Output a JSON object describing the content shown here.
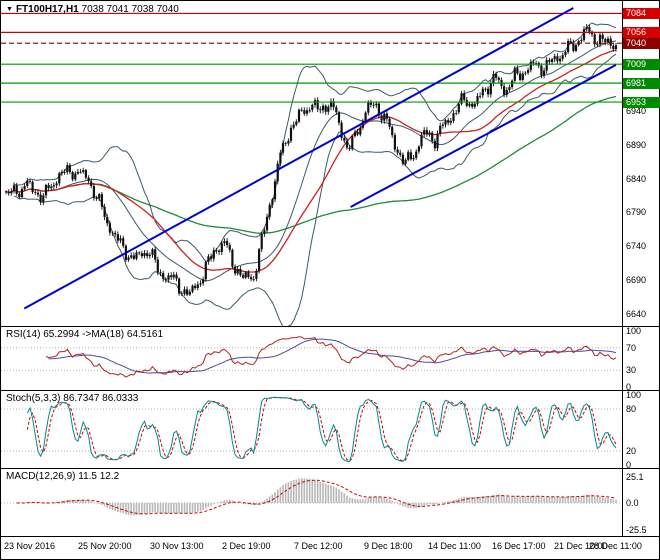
{
  "symbol_bar": {
    "marker": "▼",
    "symbol": "FT100H17,H1",
    "quote": "7038 7041 7038 7040"
  },
  "panels": {
    "rsi": {
      "header": "RSI(14) 65.2994 ->MA(18) 64.5161",
      "scale": [
        "100",
        "70",
        "30",
        "0"
      ],
      "level_lines": [
        70,
        30
      ]
    },
    "stoch": {
      "header": "Stoch(5,3,3) 86.7347 86.0333",
      "scale": [
        "100",
        "80",
        "20",
        "0"
      ],
      "level_lines": [
        80,
        20
      ]
    },
    "macd": {
      "header": "MACD(12,26,9) 11.5 12.2",
      "scale": [
        "25.1",
        "0.0",
        "-25.5"
      ],
      "level_lines": [
        0
      ]
    }
  },
  "price_axis": {
    "tags": [
      {
        "label": "7084",
        "price": 7084,
        "bg": "#d40000"
      },
      {
        "label": "7056",
        "price": 7056,
        "bg": "#d40000"
      },
      {
        "label": "7040",
        "price": 7040,
        "bg": "#8b0000"
      },
      {
        "label": "7009",
        "price": 7009,
        "bg": "#008a00"
      },
      {
        "label": "6981",
        "price": 6981,
        "bg": "#008a00"
      },
      {
        "label": "6953",
        "price": 6953,
        "bg": "#008a00"
      }
    ],
    "scale": [
      "6940",
      "6890",
      "6840",
      "6790",
      "6740",
      "6690",
      "6640"
    ]
  },
  "chart_data": {
    "type": "candlestick",
    "symbol": "FT100H17",
    "timeframe": "H1",
    "last_quote": {
      "open": 7038,
      "high": 7041,
      "low": 7038,
      "close": 7040
    },
    "price_range": [
      6628,
      7092
    ],
    "bars": 230,
    "x_labels": [
      "23 Nov 2016",
      "25 Nov 20:00",
      "30 Nov 13:00",
      "2 Dec 19:00",
      "7 Dec 12:00",
      "9 Dec 18:00",
      "14 Dec 11:00",
      "16 Dec 17:00",
      "21 Dec 10:00",
      "28 Dec 11:00"
    ],
    "price_path_anchors": [
      [
        0.0,
        6815
      ],
      [
        0.036,
        6830
      ],
      [
        0.061,
        6812
      ],
      [
        0.086,
        6845
      ],
      [
        0.11,
        6852
      ],
      [
        0.135,
        6840
      ],
      [
        0.152,
        6805
      ],
      [
        0.168,
        6772
      ],
      [
        0.184,
        6746
      ],
      [
        0.209,
        6720
      ],
      [
        0.234,
        6736
      ],
      [
        0.25,
        6702
      ],
      [
        0.275,
        6690
      ],
      [
        0.3,
        6666
      ],
      [
        0.324,
        6700
      ],
      [
        0.341,
        6734
      ],
      [
        0.357,
        6746
      ],
      [
        0.374,
        6712
      ],
      [
        0.39,
        6690
      ],
      [
        0.407,
        6698
      ],
      [
        0.418,
        6742
      ],
      [
        0.432,
        6800
      ],
      [
        0.448,
        6868
      ],
      [
        0.464,
        6910
      ],
      [
        0.481,
        6932
      ],
      [
        0.497,
        6950
      ],
      [
        0.514,
        6940
      ],
      [
        0.53,
        6954
      ],
      [
        0.547,
        6920
      ],
      [
        0.56,
        6882
      ],
      [
        0.572,
        6900
      ],
      [
        0.588,
        6938
      ],
      [
        0.604,
        6950
      ],
      [
        0.621,
        6930
      ],
      [
        0.637,
        6892
      ],
      [
        0.654,
        6860
      ],
      [
        0.67,
        6880
      ],
      [
        0.687,
        6908
      ],
      [
        0.703,
        6898
      ],
      [
        0.719,
        6920
      ],
      [
        0.736,
        6940
      ],
      [
        0.752,
        6958
      ],
      [
        0.769,
        6948
      ],
      [
        0.785,
        6974
      ],
      [
        0.802,
        6988
      ],
      [
        0.818,
        6970
      ],
      [
        0.835,
        6990
      ],
      [
        0.851,
        7000
      ],
      [
        0.868,
        7008
      ],
      [
        0.884,
        7004
      ],
      [
        0.901,
        7018
      ],
      [
        0.917,
        7028
      ],
      [
        0.934,
        7040
      ],
      [
        0.95,
        7058
      ],
      [
        0.967,
        7048
      ],
      [
        0.983,
        7040
      ],
      [
        1.0,
        7040
      ]
    ],
    "levels": [
      {
        "price": 7084,
        "color": "#d40000",
        "style": "solid"
      },
      {
        "price": 7056,
        "color": "#d40000",
        "style": "solid"
      },
      {
        "price": 7040,
        "color": "#8b0000",
        "style": "dashed"
      },
      {
        "price": 7009,
        "color": "#009900",
        "style": "solid"
      },
      {
        "price": 6981,
        "color": "#009900",
        "style": "solid"
      },
      {
        "price": 6953,
        "color": "#009900",
        "style": "solid"
      }
    ],
    "trendlines": [
      {
        "t1": 0.03,
        "p1": 6648,
        "t2": 0.93,
        "p2": 7092,
        "color": "#0000cd"
      },
      {
        "t1": 0.565,
        "p1": 6798,
        "t2": 1.0,
        "p2": 7008,
        "color": "#0000cd"
      }
    ],
    "indicators": {
      "bollinger": {
        "period": 20,
        "deviation": 2,
        "color": "#3a5a6a"
      },
      "ma_fast": {
        "period": 34,
        "color": "#cc2222"
      },
      "ma_slow": {
        "period": 120,
        "color": "#1e8a3c"
      },
      "rsi": {
        "period": 14,
        "value": 65.2994,
        "ma_period": 18,
        "ma_value": 64.5161,
        "color": "#b22222",
        "ma_color": "#4a4a9a"
      },
      "stochastic": {
        "k": 5,
        "d": 3,
        "slowing": 3,
        "value": 86.7347,
        "signal": 86.0333,
        "color": "#008b8b",
        "signal_color": "#cc0000"
      },
      "macd": {
        "fast": 12,
        "slow": 26,
        "signal": 9,
        "value": 11.5,
        "signal_value": 12.2,
        "hist_color": "#b8b8b8",
        "signal_color": "#cc0000"
      }
    },
    "candle_color": "#101010"
  }
}
